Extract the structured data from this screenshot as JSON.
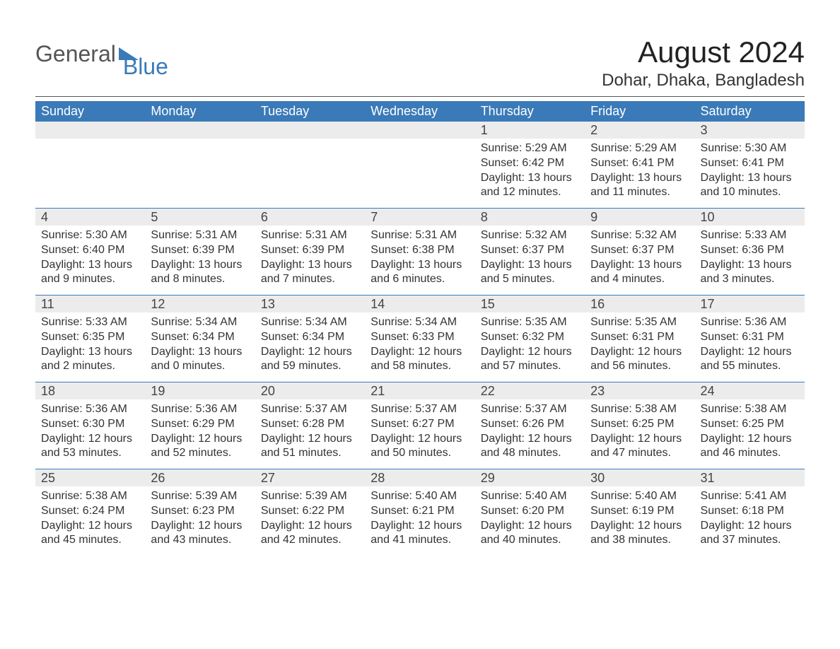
{
  "logo": {
    "part1": "General",
    "part2": "Blue"
  },
  "header": {
    "month_title": "August 2024",
    "location": "Dohar, Dhaka, Bangladesh"
  },
  "colors": {
    "header_bg": "#3a7ab8",
    "header_text": "#ffffff",
    "daynum_bg": "#ececec",
    "body_text": "#333333",
    "rule": "#555555"
  },
  "day_names": [
    "Sunday",
    "Monday",
    "Tuesday",
    "Wednesday",
    "Thursday",
    "Friday",
    "Saturday"
  ],
  "weeks": [
    [
      {
        "empty": true
      },
      {
        "empty": true
      },
      {
        "empty": true
      },
      {
        "empty": true
      },
      {
        "day": "1",
        "sunrise": "Sunrise: 5:29 AM",
        "sunset": "Sunset: 6:42 PM",
        "daylight": "Daylight: 13 hours and 12 minutes."
      },
      {
        "day": "2",
        "sunrise": "Sunrise: 5:29 AM",
        "sunset": "Sunset: 6:41 PM",
        "daylight": "Daylight: 13 hours and 11 minutes."
      },
      {
        "day": "3",
        "sunrise": "Sunrise: 5:30 AM",
        "sunset": "Sunset: 6:41 PM",
        "daylight": "Daylight: 13 hours and 10 minutes."
      }
    ],
    [
      {
        "day": "4",
        "sunrise": "Sunrise: 5:30 AM",
        "sunset": "Sunset: 6:40 PM",
        "daylight": "Daylight: 13 hours and 9 minutes."
      },
      {
        "day": "5",
        "sunrise": "Sunrise: 5:31 AM",
        "sunset": "Sunset: 6:39 PM",
        "daylight": "Daylight: 13 hours and 8 minutes."
      },
      {
        "day": "6",
        "sunrise": "Sunrise: 5:31 AM",
        "sunset": "Sunset: 6:39 PM",
        "daylight": "Daylight: 13 hours and 7 minutes."
      },
      {
        "day": "7",
        "sunrise": "Sunrise: 5:31 AM",
        "sunset": "Sunset: 6:38 PM",
        "daylight": "Daylight: 13 hours and 6 minutes."
      },
      {
        "day": "8",
        "sunrise": "Sunrise: 5:32 AM",
        "sunset": "Sunset: 6:37 PM",
        "daylight": "Daylight: 13 hours and 5 minutes."
      },
      {
        "day": "9",
        "sunrise": "Sunrise: 5:32 AM",
        "sunset": "Sunset: 6:37 PM",
        "daylight": "Daylight: 13 hours and 4 minutes."
      },
      {
        "day": "10",
        "sunrise": "Sunrise: 5:33 AM",
        "sunset": "Sunset: 6:36 PM",
        "daylight": "Daylight: 13 hours and 3 minutes."
      }
    ],
    [
      {
        "day": "11",
        "sunrise": "Sunrise: 5:33 AM",
        "sunset": "Sunset: 6:35 PM",
        "daylight": "Daylight: 13 hours and 2 minutes."
      },
      {
        "day": "12",
        "sunrise": "Sunrise: 5:34 AM",
        "sunset": "Sunset: 6:34 PM",
        "daylight": "Daylight: 13 hours and 0 minutes."
      },
      {
        "day": "13",
        "sunrise": "Sunrise: 5:34 AM",
        "sunset": "Sunset: 6:34 PM",
        "daylight": "Daylight: 12 hours and 59 minutes."
      },
      {
        "day": "14",
        "sunrise": "Sunrise: 5:34 AM",
        "sunset": "Sunset: 6:33 PM",
        "daylight": "Daylight: 12 hours and 58 minutes."
      },
      {
        "day": "15",
        "sunrise": "Sunrise: 5:35 AM",
        "sunset": "Sunset: 6:32 PM",
        "daylight": "Daylight: 12 hours and 57 minutes."
      },
      {
        "day": "16",
        "sunrise": "Sunrise: 5:35 AM",
        "sunset": "Sunset: 6:31 PM",
        "daylight": "Daylight: 12 hours and 56 minutes."
      },
      {
        "day": "17",
        "sunrise": "Sunrise: 5:36 AM",
        "sunset": "Sunset: 6:31 PM",
        "daylight": "Daylight: 12 hours and 55 minutes."
      }
    ],
    [
      {
        "day": "18",
        "sunrise": "Sunrise: 5:36 AM",
        "sunset": "Sunset: 6:30 PM",
        "daylight": "Daylight: 12 hours and 53 minutes."
      },
      {
        "day": "19",
        "sunrise": "Sunrise: 5:36 AM",
        "sunset": "Sunset: 6:29 PM",
        "daylight": "Daylight: 12 hours and 52 minutes."
      },
      {
        "day": "20",
        "sunrise": "Sunrise: 5:37 AM",
        "sunset": "Sunset: 6:28 PM",
        "daylight": "Daylight: 12 hours and 51 minutes."
      },
      {
        "day": "21",
        "sunrise": "Sunrise: 5:37 AM",
        "sunset": "Sunset: 6:27 PM",
        "daylight": "Daylight: 12 hours and 50 minutes."
      },
      {
        "day": "22",
        "sunrise": "Sunrise: 5:37 AM",
        "sunset": "Sunset: 6:26 PM",
        "daylight": "Daylight: 12 hours and 48 minutes."
      },
      {
        "day": "23",
        "sunrise": "Sunrise: 5:38 AM",
        "sunset": "Sunset: 6:25 PM",
        "daylight": "Daylight: 12 hours and 47 minutes."
      },
      {
        "day": "24",
        "sunrise": "Sunrise: 5:38 AM",
        "sunset": "Sunset: 6:25 PM",
        "daylight": "Daylight: 12 hours and 46 minutes."
      }
    ],
    [
      {
        "day": "25",
        "sunrise": "Sunrise: 5:38 AM",
        "sunset": "Sunset: 6:24 PM",
        "daylight": "Daylight: 12 hours and 45 minutes."
      },
      {
        "day": "26",
        "sunrise": "Sunrise: 5:39 AM",
        "sunset": "Sunset: 6:23 PM",
        "daylight": "Daylight: 12 hours and 43 minutes."
      },
      {
        "day": "27",
        "sunrise": "Sunrise: 5:39 AM",
        "sunset": "Sunset: 6:22 PM",
        "daylight": "Daylight: 12 hours and 42 minutes."
      },
      {
        "day": "28",
        "sunrise": "Sunrise: 5:40 AM",
        "sunset": "Sunset: 6:21 PM",
        "daylight": "Daylight: 12 hours and 41 minutes."
      },
      {
        "day": "29",
        "sunrise": "Sunrise: 5:40 AM",
        "sunset": "Sunset: 6:20 PM",
        "daylight": "Daylight: 12 hours and 40 minutes."
      },
      {
        "day": "30",
        "sunrise": "Sunrise: 5:40 AM",
        "sunset": "Sunset: 6:19 PM",
        "daylight": "Daylight: 12 hours and 38 minutes."
      },
      {
        "day": "31",
        "sunrise": "Sunrise: 5:41 AM",
        "sunset": "Sunset: 6:18 PM",
        "daylight": "Daylight: 12 hours and 37 minutes."
      }
    ]
  ]
}
